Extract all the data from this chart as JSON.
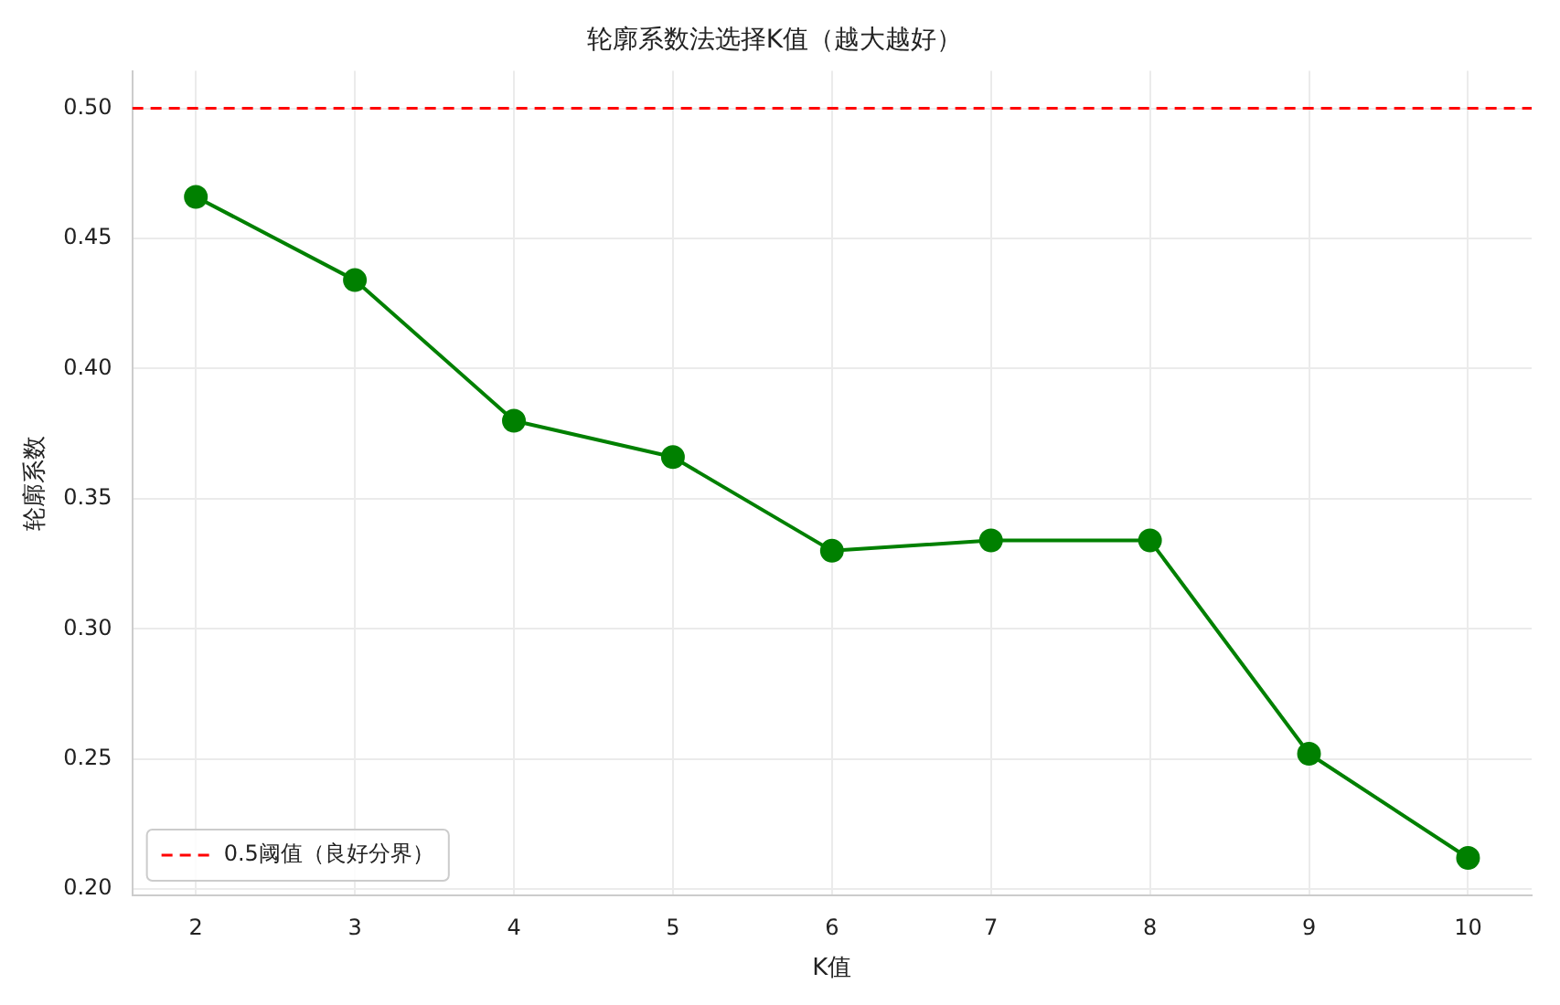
{
  "chart_data": {
    "type": "line",
    "title": "轮廓系数法选择K值（越大越好）",
    "xlabel": "K值",
    "ylabel": "轮廓系数",
    "x": [
      2,
      3,
      4,
      5,
      6,
      7,
      8,
      9,
      10
    ],
    "series": [
      {
        "color": "#008000",
        "values": [
          0.466,
          0.434,
          0.38,
          0.366,
          0.33,
          0.334,
          0.334,
          0.252,
          0.212
        ]
      }
    ],
    "xlim": [
      1.6,
      10.4
    ],
    "xticks": [
      2,
      3,
      4,
      5,
      6,
      7,
      8,
      9,
      10
    ],
    "ylim": [
      0.1976,
      0.5144
    ],
    "yticks": [
      {
        "value": 0.2,
        "label": "0.20"
      },
      {
        "value": 0.25,
        "label": "0.25"
      },
      {
        "value": 0.3,
        "label": "0.30"
      },
      {
        "value": 0.35,
        "label": "0.35"
      },
      {
        "value": 0.4,
        "label": "0.40"
      },
      {
        "value": 0.45,
        "label": "0.45"
      },
      {
        "value": 0.5,
        "label": "0.50"
      }
    ],
    "ref_lines": [
      {
        "axis": "y",
        "value": 0.5,
        "label": "0.5阈值（良好分界）",
        "color": "#ff0000",
        "line_style": "dashed"
      }
    ],
    "grid": true,
    "legend": "bottom left",
    "marker": "circle",
    "line_style": "solid"
  }
}
